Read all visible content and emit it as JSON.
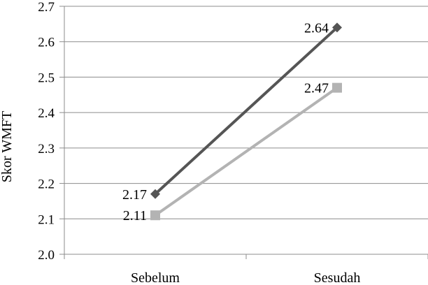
{
  "chart_data": {
    "type": "line",
    "title": "",
    "xlabel": "",
    "ylabel": "Skor WMFT",
    "categories": [
      "Sebelum",
      "Sesudah"
    ],
    "ylim": [
      2.0,
      2.7
    ],
    "ytick_labels": [
      "2.0",
      "2.1",
      "2.2",
      "2.3",
      "2.4",
      "2.5",
      "2.6",
      "2.7"
    ],
    "grid": true,
    "legend": "none",
    "series": [
      {
        "values": [
          2.17,
          2.64
        ],
        "labels": [
          "2.17",
          "2.64"
        ],
        "color": "#555555",
        "marker": "diamond"
      },
      {
        "values": [
          2.11,
          2.47
        ],
        "labels": [
          "2.11",
          "2.47"
        ],
        "color": "#b3b3b3",
        "marker": "square"
      }
    ]
  }
}
